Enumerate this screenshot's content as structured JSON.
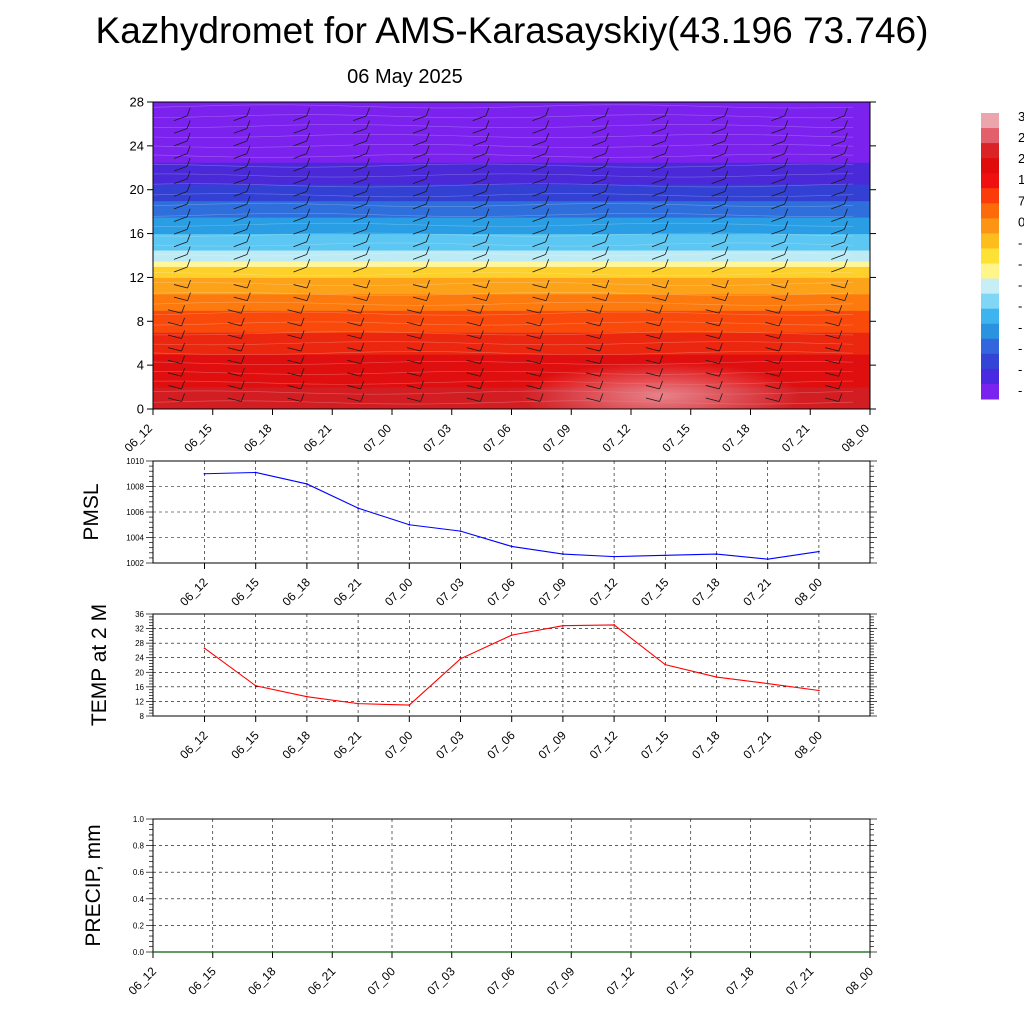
{
  "title": "Kazhydromet for AMS-Karasayskiy(43.196 73.746)",
  "subtitle": "06 May 2025",
  "colors": {
    "pmsl_line": "#0000ff",
    "temp_line": "#ff0000",
    "precip_line": "#006400",
    "grid": "#000000"
  },
  "colorbar": {
    "colors": [
      "#eba5ad",
      "#e35f6b",
      "#d92327",
      "#e00b0b",
      "#f01010",
      "#fc3b0a",
      "#fd6a0a",
      "#fd9414",
      "#fdbd1e",
      "#fde135",
      "#fff58a",
      "#c8eef5",
      "#7fd7f5",
      "#3db4ef",
      "#2993e0",
      "#3366dd",
      "#3344d6",
      "#4a2ae0",
      "#7a22ee"
    ],
    "tick_labels": [
      "3",
      "2",
      "2",
      "1",
      "7",
      "0",
      "-",
      "-",
      "-",
      "-",
      "-",
      "-",
      "-",
      "-"
    ]
  },
  "chart_data": [
    {
      "type": "heatmap",
      "id": "cross-section",
      "title": "",
      "ylim": [
        0,
        28
      ],
      "yticks": [
        0,
        4,
        8,
        12,
        16,
        20,
        24,
        28
      ],
      "xticks": [
        "06_12",
        "06_15",
        "06_18",
        "06_21",
        "07_00",
        "07_03",
        "07_06",
        "07_09",
        "07_12",
        "07_15",
        "07_18",
        "07_21",
        "08_00"
      ],
      "bands": [
        {
          "y0": 0,
          "y1": 2,
          "color": "#d21e23"
        },
        {
          "y0": 2,
          "y1": 5,
          "color": "#e00f0f"
        },
        {
          "y0": 5,
          "y1": 7,
          "color": "#ec2710"
        },
        {
          "y0": 7,
          "y1": 9,
          "color": "#fa4a0b"
        },
        {
          "y0": 9,
          "y1": 10.5,
          "color": "#fd7b0e"
        },
        {
          "y0": 10.5,
          "y1": 12,
          "color": "#fda31a"
        },
        {
          "y0": 12,
          "y1": 13,
          "color": "#fdd02b"
        },
        {
          "y0": 13,
          "y1": 13.5,
          "color": "#fff59a"
        },
        {
          "y0": 13.5,
          "y1": 14.5,
          "color": "#bdebf5"
        },
        {
          "y0": 14.5,
          "y1": 16,
          "color": "#5cc7f2"
        },
        {
          "y0": 16,
          "y1": 17.5,
          "color": "#2a9ee5"
        },
        {
          "y0": 17.5,
          "y1": 19,
          "color": "#2f6fdc"
        },
        {
          "y0": 19,
          "y1": 20.5,
          "color": "#3340d4"
        },
        {
          "y0": 20.5,
          "y1": 22.5,
          "color": "#4a2ad8"
        },
        {
          "y0": 22.5,
          "y1": 28,
          "color": "#7b22ee"
        }
      ],
      "warm_core": {
        "x": 8.5,
        "y": 1.2,
        "color": "#e8828a"
      }
    },
    {
      "type": "line",
      "id": "pmsl",
      "ylabel": "PMSL",
      "ylim": [
        1002,
        1010
      ],
      "yticks": [
        1002,
        1004,
        1006,
        1008,
        1010
      ],
      "xticks": [
        "06_12",
        "06_15",
        "06_18",
        "06_21",
        "07_00",
        "07_03",
        "07_06",
        "07_09",
        "07_12",
        "07_15",
        "07_18",
        "07_21",
        "08_00"
      ],
      "values": [
        1009.0,
        1009.1,
        1008.2,
        1006.3,
        1005.0,
        1004.5,
        1003.3,
        1002.7,
        1002.5,
        1002.6,
        1002.7,
        1002.3,
        1002.9
      ]
    },
    {
      "type": "line",
      "id": "temp",
      "ylabel": "TEMP at 2 M",
      "ylim": [
        8,
        36
      ],
      "yticks": [
        8,
        12,
        16,
        20,
        24,
        28,
        32,
        36
      ],
      "xticks": [
        "06_12",
        "06_15",
        "06_18",
        "06_21",
        "07_00",
        "07_03",
        "07_06",
        "07_09",
        "07_12",
        "07_15",
        "07_18",
        "07_21",
        "08_00"
      ],
      "values": [
        26.6,
        16.3,
        13.3,
        11.4,
        11.0,
        23.7,
        30.2,
        32.8,
        33.0,
        22.1,
        18.7,
        16.9,
        15.0
      ]
    },
    {
      "type": "line",
      "id": "precip",
      "ylabel": "PRECIP, mm",
      "ylim": [
        0,
        1.0
      ],
      "yticks": [
        0.0,
        0.2,
        0.4,
        0.6,
        0.8,
        1.0
      ],
      "ytick_labels": [
        "0.0",
        "0.2",
        "0.4",
        "0.6",
        "0.8",
        "1.0"
      ],
      "xticks": [
        "06_12",
        "06_15",
        "06_18",
        "06_21",
        "07_00",
        "07_03",
        "07_06",
        "07_09",
        "07_12",
        "07_15",
        "07_18",
        "07_21",
        "08_00"
      ],
      "values": [
        0,
        0,
        0,
        0,
        0,
        0,
        0,
        0,
        0,
        0,
        0,
        0,
        0
      ]
    }
  ]
}
